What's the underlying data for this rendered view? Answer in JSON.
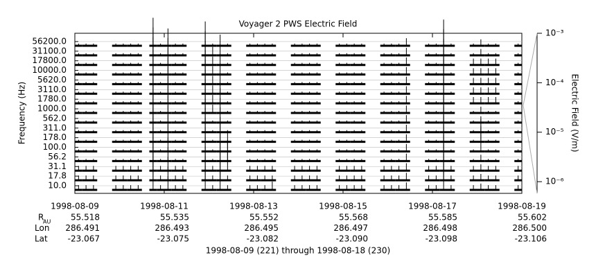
{
  "chart_data": {
    "type": "channel-trace",
    "title": "Voyager 2 PWS Electric Field",
    "ylabel": "Frequency (Hz)",
    "y2label": "Electric Field (V/m)",
    "footer": "1998-08-09 (221) through 1998-08-18 (230)",
    "color": "#000000",
    "categories": [
      "10.0",
      "17.8",
      "31.1",
      "56.2",
      "100.0",
      "178.0",
      "311.0",
      "562.0",
      "1000.0",
      "1780.0",
      "3110.0",
      "5620.0",
      "10000.0",
      "17800.0",
      "31100.0",
      "56200.0"
    ],
    "xlim": [
      "1998-08-09",
      "1998-08-19"
    ],
    "xticks": [
      "1998-08-09",
      "1998-08-11",
      "1998-08-13",
      "1998-08-15",
      "1998-08-17",
      "1998-08-19"
    ],
    "y2lim": [
      5.8e-07,
      0.001
    ],
    "y2log": true,
    "y2ticks": [
      {
        "value": 0.001,
        "label": "10⁻³"
      },
      {
        "value": 0.0001,
        "label": "10⁻⁴"
      },
      {
        "value": 1e-05,
        "label": "10⁻⁵"
      },
      {
        "value": 1e-06,
        "label": "10⁻⁶"
      }
    ],
    "values": [
      [
        2e-06,
        2e-06,
        2e-06,
        null,
        null,
        2e-06,
        2e-06,
        2e-06,
        2e-06,
        null,
        0.0008,
        2e-06,
        2e-05,
        2e-06,
        2e-06,
        null,
        null,
        0.0003,
        2e-06,
        0.0001,
        2e-06,
        null,
        null,
        2e-06,
        2e-06,
        2e-06,
        5e-06,
        null,
        null,
        2e-06,
        2e-06,
        2e-06,
        2e-06,
        null,
        null,
        2e-06,
        2e-06,
        2e-06,
        2e-06,
        null,
        null,
        2e-06,
        2e-06,
        2e-06,
        4e-06,
        null,
        null,
        2e-06,
        2e-06,
        0.0005,
        2e-06,
        null,
        null,
        2e-06,
        3e-06,
        2e-06,
        2e-06,
        null,
        null,
        2e-06
      ],
      [
        2e-06,
        2e-06,
        2e-06,
        null,
        null,
        2e-06,
        2e-06,
        2e-06,
        2e-06,
        null,
        0.0008,
        2e-06,
        2e-05,
        2e-06,
        2e-06,
        null,
        null,
        0.0003,
        2e-06,
        0.0001,
        2e-06,
        null,
        null,
        2e-06,
        2e-06,
        2e-06,
        2e-06,
        null,
        null,
        2e-06,
        2e-06,
        2e-06,
        2e-06,
        null,
        null,
        2e-06,
        2e-06,
        2e-06,
        2e-06,
        null,
        null,
        2e-06,
        2e-06,
        2e-06,
        4e-06,
        null,
        null,
        2e-06,
        2e-06,
        0.0005,
        2e-06,
        null,
        null,
        2e-06,
        3e-06,
        2e-06,
        2e-06,
        null,
        null,
        2e-06
      ],
      [
        2e-06,
        2e-06,
        2e-06,
        null,
        null,
        2e-06,
        2e-06,
        2e-06,
        2e-06,
        null,
        0.0008,
        2e-06,
        2e-05,
        2e-06,
        2e-06,
        null,
        null,
        0.0003,
        2e-06,
        0.0001,
        0.0001,
        null,
        null,
        2e-06,
        2e-06,
        2e-06,
        2e-06,
        null,
        null,
        2e-06,
        2e-06,
        2e-06,
        2e-06,
        null,
        null,
        2e-06,
        2e-06,
        2e-06,
        2e-06,
        null,
        null,
        2e-06,
        2e-06,
        2e-06,
        4e-06,
        null,
        null,
        2e-06,
        2e-06,
        0.0005,
        2e-06,
        null,
        null,
        2e-06,
        3e-06,
        2e-06,
        2e-06,
        null,
        null,
        2e-06
      ],
      [
        1e-06,
        1e-06,
        1e-06,
        null,
        null,
        1e-06,
        1e-06,
        1e-06,
        1e-06,
        null,
        0.0008,
        1e-06,
        2e-05,
        1e-06,
        1e-06,
        null,
        null,
        0.0003,
        1e-06,
        0.0001,
        0.0001,
        null,
        null,
        1e-06,
        1e-06,
        1e-06,
        1e-06,
        null,
        null,
        1e-06,
        1e-06,
        1e-06,
        1e-06,
        null,
        null,
        1e-06,
        1e-06,
        1e-06,
        1e-06,
        null,
        null,
        1e-06,
        1e-06,
        1e-06,
        4e-06,
        null,
        null,
        1e-06,
        1e-06,
        0.0005,
        1e-06,
        null,
        null,
        1e-06,
        3e-06,
        1e-06,
        1e-06,
        null,
        null,
        1e-06
      ],
      [
        1e-06,
        1e-06,
        1e-06,
        null,
        null,
        1e-06,
        1e-06,
        1e-06,
        1e-06,
        null,
        0.0008,
        1e-06,
        2e-05,
        1e-06,
        1e-06,
        null,
        null,
        0.0003,
        1e-06,
        0.0001,
        0.0001,
        null,
        null,
        1e-06,
        1e-06,
        1e-06,
        1e-06,
        null,
        null,
        1e-06,
        1e-06,
        1e-06,
        1e-06,
        null,
        null,
        1e-06,
        1e-06,
        1e-06,
        1e-06,
        null,
        null,
        1e-06,
        1e-06,
        1e-06,
        4e-06,
        null,
        null,
        1e-06,
        1e-06,
        0.0005,
        1e-06,
        null,
        null,
        1e-06,
        0.0002,
        1e-06,
        1e-06,
        null,
        null,
        1e-06
      ],
      [
        1e-06,
        1e-06,
        1e-06,
        null,
        null,
        1e-06,
        1e-06,
        1e-06,
        1e-06,
        null,
        0.0008,
        1e-06,
        5e-05,
        1e-06,
        1e-06,
        null,
        null,
        0.0003,
        1e-06,
        0.0001,
        1e-06,
        null,
        null,
        1e-06,
        1e-06,
        1e-06,
        1e-06,
        null,
        null,
        1e-06,
        1e-06,
        1e-06,
        1e-06,
        null,
        null,
        1e-06,
        1e-06,
        1e-06,
        1e-06,
        null,
        null,
        1e-06,
        1e-06,
        1e-06,
        4e-06,
        null,
        null,
        1e-06,
        1e-06,
        0.0005,
        1e-06,
        null,
        null,
        1e-06,
        0.0002,
        1e-06,
        1e-06,
        null,
        null,
        1e-06
      ],
      [
        1e-06,
        1e-06,
        1e-06,
        null,
        null,
        1e-06,
        1e-06,
        1e-06,
        1e-06,
        null,
        0.0008,
        1e-06,
        5e-05,
        1e-06,
        1e-06,
        null,
        null,
        0.0003,
        1e-06,
        3e-05,
        1e-06,
        null,
        null,
        1e-06,
        1e-06,
        1e-06,
        1e-06,
        null,
        null,
        1e-06,
        1e-06,
        1e-06,
        1e-06,
        null,
        null,
        1e-06,
        1e-06,
        1e-06,
        1e-06,
        null,
        null,
        1e-06,
        1e-06,
        1e-06,
        4e-06,
        null,
        null,
        1e-06,
        1e-06,
        0.0005,
        1e-06,
        null,
        null,
        1e-06,
        3e-06,
        1e-06,
        1e-06,
        null,
        null,
        1e-06
      ],
      [
        1e-06,
        1e-06,
        1e-06,
        null,
        null,
        1e-06,
        1e-06,
        1e-06,
        1e-06,
        null,
        0.0008,
        1e-06,
        5e-05,
        1e-06,
        1e-06,
        null,
        null,
        0.0003,
        1e-06,
        3e-05,
        1e-06,
        null,
        null,
        1e-06,
        1e-06,
        1e-06,
        1e-06,
        null,
        null,
        1e-06,
        1e-06,
        1e-06,
        1e-06,
        null,
        null,
        1e-06,
        1e-06,
        1e-06,
        1e-06,
        null,
        null,
        1e-06,
        1e-06,
        1e-06,
        4e-06,
        null,
        null,
        1e-06,
        1e-06,
        0.0005,
        1e-06,
        null,
        null,
        1e-06,
        3e-06,
        1e-06,
        1e-06,
        null,
        null,
        1e-06
      ],
      [
        1e-06,
        1e-06,
        1e-06,
        null,
        null,
        1e-06,
        1e-06,
        1e-06,
        1e-06,
        null,
        0.0008,
        1e-06,
        5e-05,
        1e-06,
        1e-06,
        null,
        null,
        0.0003,
        5e-06,
        3e-05,
        1e-06,
        null,
        null,
        1e-06,
        1e-06,
        1e-06,
        1e-06,
        null,
        null,
        1e-06,
        1e-06,
        1e-06,
        1e-06,
        null,
        null,
        1e-06,
        1e-06,
        1e-06,
        1e-06,
        null,
        null,
        1e-06,
        1e-06,
        1e-06,
        4e-06,
        null,
        null,
        1e-06,
        1e-06,
        0.0005,
        1e-06,
        null,
        null,
        1e-06,
        3e-06,
        1e-06,
        1e-06,
        null,
        null,
        1e-06
      ],
      [
        1e-06,
        1e-06,
        1e-06,
        null,
        null,
        1e-06,
        1e-06,
        1e-06,
        1e-06,
        null,
        0.0008,
        1e-06,
        5e-05,
        1e-06,
        1e-06,
        null,
        null,
        0.0003,
        5e-06,
        3e-05,
        1e-06,
        null,
        null,
        1e-06,
        1e-06,
        1e-06,
        1e-06,
        null,
        null,
        1e-06,
        1e-06,
        1e-06,
        1e-06,
        null,
        null,
        1e-06,
        1e-06,
        1e-06,
        1e-06,
        null,
        null,
        1e-06,
        1e-06,
        1e-06,
        4e-06,
        null,
        null,
        1e-06,
        1e-06,
        0.0005,
        1e-06,
        null,
        null,
        3e-06,
        3e-06,
        3e-06,
        3e-06,
        null,
        null,
        1e-06
      ],
      [
        1e-06,
        1e-06,
        1e-06,
        null,
        null,
        1e-06,
        1e-06,
        1e-06,
        1e-06,
        null,
        0.0008,
        1e-06,
        5e-05,
        1e-06,
        1e-06,
        null,
        null,
        0.0003,
        5e-06,
        1e-05,
        1e-06,
        null,
        null,
        1e-06,
        1e-06,
        1e-06,
        1e-06,
        null,
        null,
        1e-06,
        1e-06,
        1e-06,
        1e-06,
        null,
        null,
        1e-06,
        1e-06,
        1e-06,
        1e-06,
        null,
        null,
        1e-06,
        1e-06,
        1e-06,
        4e-06,
        null,
        null,
        1e-06,
        1e-06,
        0.0005,
        1e-06,
        null,
        null,
        3e-06,
        3e-06,
        3e-06,
        3e-06,
        null,
        null,
        1e-06
      ],
      [
        1e-06,
        1e-06,
        1e-06,
        null,
        null,
        1e-06,
        1e-06,
        1e-06,
        1e-06,
        null,
        0.0008,
        1e-06,
        5e-05,
        1e-06,
        1e-06,
        null,
        null,
        0.0003,
        5e-06,
        1e-05,
        1e-06,
        null,
        null,
        1e-06,
        1e-06,
        1e-06,
        1e-06,
        null,
        null,
        1e-06,
        1e-06,
        1e-06,
        1e-06,
        null,
        null,
        1e-06,
        1e-06,
        1e-06,
        1e-06,
        null,
        null,
        1e-06,
        1e-06,
        1e-06,
        4e-06,
        null,
        null,
        1e-06,
        1e-06,
        0.0005,
        1e-06,
        null,
        null,
        3e-06,
        3e-06,
        3e-06,
        3e-06,
        null,
        null,
        1e-06
      ],
      [
        1e-06,
        1e-06,
        1e-06,
        null,
        null,
        1e-06,
        1e-06,
        1e-06,
        1e-06,
        null,
        0.0008,
        1e-06,
        5e-05,
        1e-06,
        1e-06,
        null,
        null,
        0.0003,
        5e-06,
        1e-05,
        1e-06,
        null,
        null,
        1e-06,
        1e-06,
        1e-06,
        1e-06,
        null,
        null,
        1e-06,
        1e-06,
        1e-06,
        1e-06,
        null,
        null,
        1e-06,
        1e-06,
        1e-06,
        1e-06,
        null,
        null,
        1e-06,
        1e-06,
        1e-06,
        4e-06,
        null,
        null,
        1e-06,
        1e-06,
        0.0005,
        1e-06,
        null,
        null,
        3e-06,
        3e-06,
        3e-06,
        3e-06,
        null,
        null,
        1e-06
      ],
      [
        1e-06,
        1e-06,
        1e-06,
        null,
        null,
        1e-06,
        1e-06,
        1e-06,
        1e-06,
        null,
        0.0008,
        1e-06,
        5e-05,
        1e-06,
        1e-06,
        null,
        null,
        0.0003,
        5e-06,
        1e-05,
        1e-06,
        null,
        null,
        1e-06,
        1e-06,
        1e-06,
        1e-06,
        null,
        null,
        1e-06,
        1e-06,
        1e-06,
        1e-06,
        null,
        null,
        1e-06,
        1e-06,
        1e-06,
        1e-06,
        null,
        null,
        1e-06,
        1e-06,
        1e-06,
        4e-06,
        null,
        null,
        1e-06,
        1e-06,
        0.0005,
        1e-06,
        null,
        null,
        3e-06,
        3e-06,
        3e-06,
        3e-06,
        null,
        null,
        1e-06
      ],
      [
        1e-06,
        1e-06,
        1e-06,
        null,
        null,
        1e-06,
        1e-06,
        1e-06,
        1e-06,
        null,
        0.0008,
        1e-06,
        5e-05,
        1e-06,
        1e-06,
        null,
        null,
        0.0003,
        5e-06,
        1e-05,
        1e-06,
        null,
        null,
        1e-06,
        1e-06,
        1e-06,
        1e-06,
        null,
        null,
        1e-06,
        1e-06,
        1e-06,
        1e-06,
        null,
        null,
        1e-06,
        1e-06,
        1e-06,
        1e-06,
        null,
        null,
        1e-06,
        1e-06,
        1e-06,
        4e-06,
        null,
        null,
        1e-06,
        1e-06,
        0.0005,
        1e-06,
        null,
        null,
        1e-06,
        3e-06,
        1e-06,
        1e-06,
        null,
        null,
        1e-06
      ],
      [
        1e-06,
        1e-06,
        1e-06,
        null,
        null,
        1e-06,
        1e-06,
        1e-06,
        1e-06,
        null,
        0.0008,
        1e-06,
        5e-05,
        1e-06,
        1e-06,
        null,
        null,
        0.0003,
        1e-06,
        1e-05,
        1e-06,
        null,
        null,
        1e-06,
        1e-06,
        1e-06,
        1e-06,
        null,
        null,
        1e-06,
        1e-06,
        1e-06,
        1e-06,
        null,
        null,
        1e-06,
        1e-06,
        1e-06,
        1e-06,
        null,
        null,
        1e-06,
        1e-06,
        1e-06,
        4e-06,
        null,
        null,
        1e-06,
        1e-06,
        0.0005,
        1e-06,
        null,
        null,
        1e-06,
        3e-06,
        1e-06,
        1e-06,
        null,
        null,
        1e-06
      ]
    ],
    "ephemeris": [
      {
        "label": "R",
        "label_sub": "AU",
        "values": [
          55.518,
          55.535,
          55.552,
          55.568,
          55.585,
          55.602
        ]
      },
      {
        "label": "Lon",
        "values": [
          286.491,
          286.493,
          286.495,
          286.497,
          286.498,
          286.5
        ],
        "value_labels": [
          "286.491",
          "286.493",
          "286.495",
          "286.497",
          "286.498",
          "286.500"
        ]
      },
      {
        "label": "Lat",
        "values": [
          -23.067,
          -23.075,
          -23.082,
          -23.09,
          -23.098,
          -23.106
        ],
        "value_labels": [
          "-23.067",
          "-23.075",
          "-23.082",
          "-23.090",
          "-23.098",
          "-23.106"
        ]
      }
    ]
  }
}
